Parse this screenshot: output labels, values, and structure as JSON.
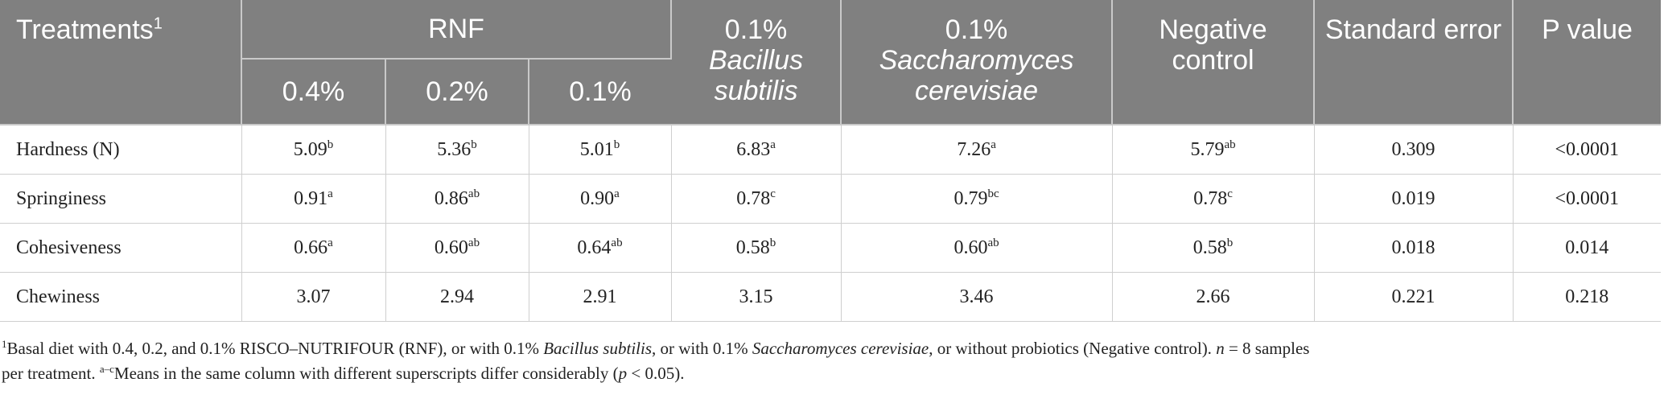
{
  "header": {
    "treatments": "Treatments",
    "treatments_sup": "1",
    "rnf": "RNF",
    "rnf_levels": [
      "0.4%",
      "0.2%",
      "0.1%"
    ],
    "bacillus_pct": "0.1%",
    "bacillus_name": "Bacillus subtilis",
    "sacch_pct": "0.1%",
    "sacch_name": "Saccharomyces cerevisiae",
    "negative_control": "Negative control",
    "standard_error": "Standard error",
    "p_value": "P value"
  },
  "rows": [
    {
      "label": "Hardness (N)",
      "cells": [
        {
          "v": "5.09",
          "s": "b"
        },
        {
          "v": "5.36",
          "s": "b"
        },
        {
          "v": "5.01",
          "s": "b"
        },
        {
          "v": "6.83",
          "s": "a"
        },
        {
          "v": "7.26",
          "s": "a"
        },
        {
          "v": "5.79",
          "s": "ab"
        },
        {
          "v": "0.309",
          "s": ""
        },
        {
          "v": "<0.0001",
          "s": ""
        }
      ]
    },
    {
      "label": "Springiness",
      "cells": [
        {
          "v": "0.91",
          "s": "a"
        },
        {
          "v": "0.86",
          "s": "ab"
        },
        {
          "v": "0.90",
          "s": "a"
        },
        {
          "v": "0.78",
          "s": "c"
        },
        {
          "v": "0.79",
          "s": "bc"
        },
        {
          "v": "0.78",
          "s": "c"
        },
        {
          "v": "0.019",
          "s": ""
        },
        {
          "v": "<0.0001",
          "s": ""
        }
      ]
    },
    {
      "label": "Cohesiveness",
      "cells": [
        {
          "v": "0.66",
          "s": "a"
        },
        {
          "v": "0.60",
          "s": "ab"
        },
        {
          "v": "0.64",
          "s": "ab"
        },
        {
          "v": "0.58",
          "s": "b"
        },
        {
          "v": "0.60",
          "s": "ab"
        },
        {
          "v": "0.58",
          "s": "b"
        },
        {
          "v": "0.018",
          "s": ""
        },
        {
          "v": "0.014",
          "s": ""
        }
      ]
    },
    {
      "label": "Chewiness",
      "cells": [
        {
          "v": "3.07",
          "s": ""
        },
        {
          "v": "2.94",
          "s": ""
        },
        {
          "v": "2.91",
          "s": ""
        },
        {
          "v": "3.15",
          "s": ""
        },
        {
          "v": "3.46",
          "s": ""
        },
        {
          "v": "2.66",
          "s": ""
        },
        {
          "v": "0.221",
          "s": ""
        },
        {
          "v": "0.218",
          "s": ""
        }
      ]
    }
  ],
  "footnote": {
    "line1_sup": "1",
    "line1_a": "Basal diet with 0.4, 0.2, and 0.1% RISCO–NUTRIFOUR (RNF), or with 0.1% ",
    "line1_b": "Bacillus subtilis",
    "line1_c": ", or with 0.1% ",
    "line1_d": "Saccharomyces cerevisiae",
    "line1_e": ", or without probiotics (Negative control). ",
    "line1_n": "n",
    "line1_f": " = 8 samples",
    "line2_a": "per treatment. ",
    "line2_sup": "a–c",
    "line2_b": "Means in the same column with different superscripts differ considerably (",
    "line2_p": "p",
    "line2_c": " < 0.05)."
  }
}
